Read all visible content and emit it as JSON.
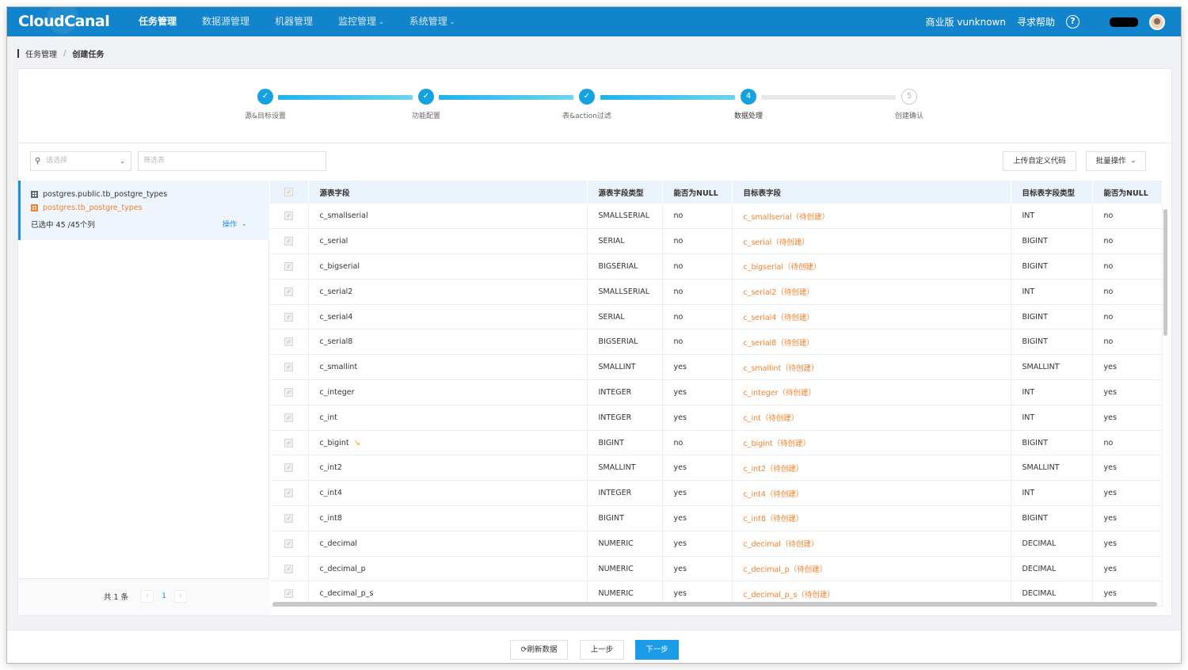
{
  "app": {
    "logo": "CloudCanal"
  },
  "nav": {
    "items": [
      {
        "label": "任务管理",
        "active": true,
        "dropdown": false
      },
      {
        "label": "数据源管理",
        "active": false,
        "dropdown": false
      },
      {
        "label": "机器管理",
        "active": false,
        "dropdown": false
      },
      {
        "label": "监控管理",
        "active": false,
        "dropdown": true
      },
      {
        "label": "系统管理",
        "active": false,
        "dropdown": true
      }
    ],
    "edition": "商业版 vunknown",
    "help": "寻求帮助",
    "help_icon": "?"
  },
  "breadcrumb": {
    "parent": "任务管理",
    "sep": "/",
    "current": "创建任务"
  },
  "steps": [
    {
      "label": "源&目标设置",
      "status": "done",
      "mark": "✓"
    },
    {
      "label": "功能配置",
      "status": "done",
      "mark": "✓"
    },
    {
      "label": "表&action过滤",
      "status": "done",
      "mark": "✓"
    },
    {
      "label": "数据处理",
      "status": "current",
      "mark": "4"
    },
    {
      "label": "创建确认",
      "status": "todo",
      "mark": "5"
    }
  ],
  "filters": {
    "select_placeholder": "请选择",
    "table_placeholder": "筛选表",
    "upload_btn": "上传自定义代码",
    "batch_btn": "批量操作"
  },
  "left": {
    "source_table": "postgres.public.tb_postgre_types",
    "target_table": "postgres.tb_postgre_types",
    "selected": "已选中 45 /45个列",
    "op": "操作",
    "total": "共 1 条",
    "page": "1",
    "prev": "‹",
    "next": "›"
  },
  "table": {
    "headers": [
      "源表字段",
      "源表字段类型",
      "能否为NULL",
      "目标表字段",
      "目标表字段类型",
      "能否为NULL"
    ],
    "pending": "（待创建）",
    "rows": [
      {
        "src": "c_smallserial",
        "srcType": "SMALLSERIAL",
        "srcNull": "no",
        "tgt": "c_smallserial",
        "tgtType": "INT",
        "tgtNull": "no",
        "wrench": false
      },
      {
        "src": "c_serial",
        "srcType": "SERIAL",
        "srcNull": "no",
        "tgt": "c_serial",
        "tgtType": "BIGINT",
        "tgtNull": "no",
        "wrench": false
      },
      {
        "src": "c_bigserial",
        "srcType": "BIGSERIAL",
        "srcNull": "no",
        "tgt": "c_bigserial",
        "tgtType": "BIGINT",
        "tgtNull": "no",
        "wrench": false
      },
      {
        "src": "c_serial2",
        "srcType": "SMALLSERIAL",
        "srcNull": "no",
        "tgt": "c_serial2",
        "tgtType": "INT",
        "tgtNull": "no",
        "wrench": false
      },
      {
        "src": "c_serial4",
        "srcType": "SERIAL",
        "srcNull": "no",
        "tgt": "c_serial4",
        "tgtType": "BIGINT",
        "tgtNull": "no",
        "wrench": false
      },
      {
        "src": "c_serial8",
        "srcType": "BIGSERIAL",
        "srcNull": "no",
        "tgt": "c_serial8",
        "tgtType": "BIGINT",
        "tgtNull": "no",
        "wrench": false
      },
      {
        "src": "c_smallint",
        "srcType": "SMALLINT",
        "srcNull": "yes",
        "tgt": "c_smallint",
        "tgtType": "SMALLINT",
        "tgtNull": "yes",
        "wrench": false
      },
      {
        "src": "c_integer",
        "srcType": "INTEGER",
        "srcNull": "yes",
        "tgt": "c_integer",
        "tgtType": "INT",
        "tgtNull": "yes",
        "wrench": false
      },
      {
        "src": "c_int",
        "srcType": "INTEGER",
        "srcNull": "yes",
        "tgt": "c_int",
        "tgtType": "INT",
        "tgtNull": "yes",
        "wrench": false
      },
      {
        "src": "c_bigint",
        "srcType": "BIGINT",
        "srcNull": "no",
        "tgt": "c_bigint",
        "tgtType": "BIGINT",
        "tgtNull": "no",
        "wrench": true
      },
      {
        "src": "c_int2",
        "srcType": "SMALLINT",
        "srcNull": "yes",
        "tgt": "c_int2",
        "tgtType": "SMALLINT",
        "tgtNull": "yes",
        "wrench": false
      },
      {
        "src": "c_int4",
        "srcType": "INTEGER",
        "srcNull": "yes",
        "tgt": "c_int4",
        "tgtType": "INT",
        "tgtNull": "yes",
        "wrench": false
      },
      {
        "src": "c_int8",
        "srcType": "BIGINT",
        "srcNull": "yes",
        "tgt": "c_int8",
        "tgtType": "BIGINT",
        "tgtNull": "yes",
        "wrench": false
      },
      {
        "src": "c_decimal",
        "srcType": "NUMERIC",
        "srcNull": "yes",
        "tgt": "c_decimal",
        "tgtType": "DECIMAL",
        "tgtNull": "yes",
        "wrench": false
      },
      {
        "src": "c_decimal_p",
        "srcType": "NUMERIC",
        "srcNull": "yes",
        "tgt": "c_decimal_p",
        "tgtType": "DECIMAL",
        "tgtNull": "yes",
        "wrench": false
      },
      {
        "src": "c_decimal_p_s",
        "srcType": "NUMERIC",
        "srcNull": "yes",
        "tgt": "c_decimal_p_s",
        "tgtType": "DECIMAL",
        "tgtNull": "yes",
        "wrench": false
      }
    ]
  },
  "footer": {
    "refresh": "刷新数据",
    "prev": "上一步",
    "next": "下一步"
  },
  "colors": {
    "primary": "#1284cc",
    "accent": "#1a9ce8",
    "warn": "#f0822c"
  }
}
